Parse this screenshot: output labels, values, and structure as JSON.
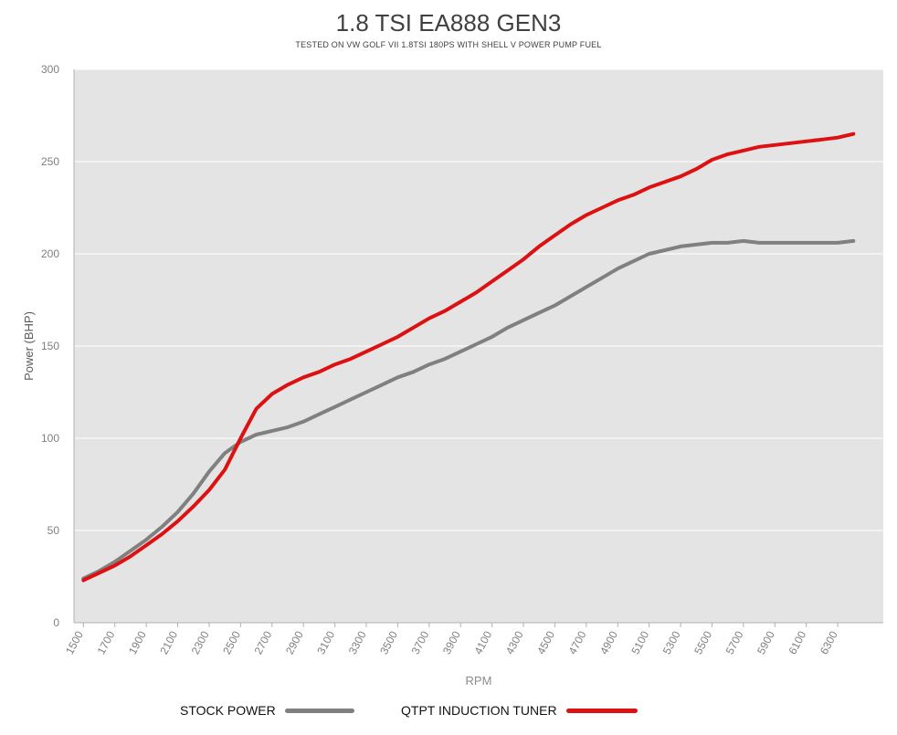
{
  "chart_data": {
    "type": "line",
    "title": "1.8 TSI EA888 GEN3",
    "subtitle": "TESTED ON VW GOLF VII 1.8TSI 180PS WITH SHELL V POWER PUMP FUEL",
    "xlabel": "RPM",
    "ylabel": "Power (BHP)",
    "ylim": [
      0,
      300
    ],
    "yticks": [
      0,
      50,
      100,
      150,
      200,
      250,
      300
    ],
    "xlim": [
      1440,
      6590
    ],
    "xticks": [
      "1500",
      "1700",
      "1900",
      "2100",
      "2300",
      "2500",
      "2700",
      "2900",
      "3100",
      "3300",
      "3500",
      "3700",
      "3900",
      "4100",
      "4300",
      "4500",
      "4700",
      "4900",
      "5100",
      "5300",
      "5500",
      "5700",
      "5900",
      "6100",
      "6300"
    ],
    "grid": true,
    "legend_position": "bottom",
    "x": [
      1500,
      1600,
      1700,
      1800,
      1900,
      2000,
      2100,
      2200,
      2300,
      2400,
      2500,
      2600,
      2700,
      2800,
      2900,
      3000,
      3100,
      3200,
      3300,
      3400,
      3500,
      3600,
      3700,
      3800,
      3900,
      4000,
      4100,
      4200,
      4300,
      4400,
      4500,
      4600,
      4700,
      4800,
      4900,
      5000,
      5100,
      5200,
      5300,
      5400,
      5500,
      5600,
      5700,
      5800,
      5900,
      6000,
      6100,
      6200,
      6300,
      6400
    ],
    "series": [
      {
        "name": "STOCK POWER",
        "color": "#808080",
        "values": [
          24,
          28,
          33,
          39,
          45,
          52,
          60,
          70,
          82,
          92,
          98,
          102,
          104,
          106,
          109,
          113,
          117,
          121,
          125,
          129,
          133,
          136,
          140,
          143,
          147,
          151,
          155,
          160,
          164,
          168,
          172,
          177,
          182,
          187,
          192,
          196,
          200,
          202,
          204,
          205,
          206,
          206,
          207,
          206,
          206,
          206,
          206,
          206,
          206,
          207
        ]
      },
      {
        "name": "QTPT INDUCTION TUNER",
        "color": "#dd1111",
        "values": [
          23,
          27,
          31,
          36,
          42,
          48,
          55,
          63,
          72,
          83,
          100,
          116,
          124,
          129,
          133,
          136,
          140,
          143,
          147,
          151,
          155,
          160,
          165,
          169,
          174,
          179,
          185,
          191,
          197,
          204,
          210,
          216,
          221,
          225,
          229,
          232,
          236,
          239,
          242,
          246,
          251,
          254,
          256,
          258,
          259,
          260,
          261,
          262,
          263,
          265
        ]
      }
    ]
  }
}
